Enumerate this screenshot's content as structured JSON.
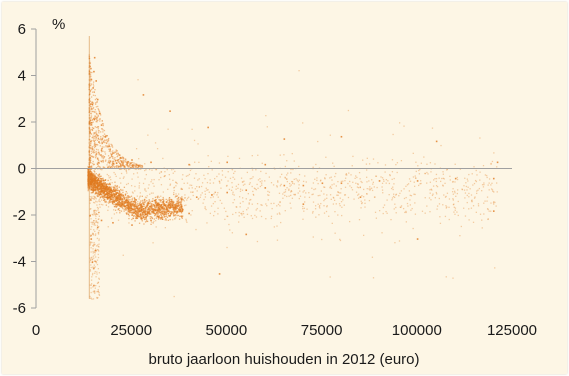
{
  "chart_data": {
    "type": "scatter",
    "title": "",
    "xlabel": "bruto jaarloon huishouden in 2012 (euro)",
    "ylabel": "%",
    "xlim": [
      0,
      125000
    ],
    "ylim": [
      -6,
      6
    ],
    "x_ticks": [
      0,
      25000,
      50000,
      75000,
      100000,
      125000
    ],
    "x_tick_labels": [
      "0",
      "25000",
      "50000",
      "75000",
      "100000",
      "125000"
    ],
    "y_ticks": [
      -6,
      -4,
      -2,
      0,
      2,
      4,
      6
    ],
    "y_tick_labels": [
      "-6",
      "-4",
      "-2",
      "0",
      "2",
      "4",
      "6"
    ],
    "grid": false,
    "legend": "none",
    "point_color": "#e07a1f",
    "series": [
      {
        "points_note": "dense household scatter",
        "points": [
          [
            14000,
            -0.4
          ],
          [
            14500,
            -0.2
          ],
          [
            15000,
            -0.6
          ],
          [
            15500,
            -0.5
          ],
          [
            16000,
            -0.8
          ],
          [
            16500,
            -0.7
          ],
          [
            17000,
            -0.9
          ],
          [
            17500,
            -1.0
          ],
          [
            18000,
            -1.1
          ],
          [
            18500,
            -1.2
          ],
          [
            19000,
            -1.2
          ],
          [
            19500,
            -1.3
          ],
          [
            20000,
            -1.4
          ],
          [
            21000,
            -1.5
          ],
          [
            22000,
            -1.6
          ],
          [
            23000,
            -1.6
          ],
          [
            24000,
            -1.7
          ],
          [
            25000,
            -1.7
          ],
          [
            26000,
            -1.8
          ],
          [
            27000,
            -1.8
          ],
          [
            28000,
            -1.7
          ],
          [
            30000,
            -1.6
          ],
          [
            32000,
            -1.5
          ],
          [
            35000,
            -1.4
          ],
          [
            38000,
            -1.3
          ],
          [
            42000,
            -1.2
          ],
          [
            46000,
            -1.1
          ],
          [
            50000,
            -1.0
          ],
          [
            55000,
            -0.9
          ],
          [
            60000,
            -0.8
          ],
          [
            65000,
            -0.7
          ],
          [
            70000,
            -0.7
          ],
          [
            75000,
            -0.6
          ],
          [
            80000,
            -0.6
          ],
          [
            90000,
            -0.5
          ],
          [
            100000,
            -0.5
          ],
          [
            110000,
            -0.4
          ],
          [
            120000,
            -0.4
          ],
          [
            14000,
            0.5
          ],
          [
            14200,
            1.2
          ],
          [
            14400,
            2.0
          ],
          [
            14600,
            2.8
          ],
          [
            14800,
            3.5
          ],
          [
            15000,
            4.2
          ],
          [
            15200,
            4.8
          ],
          [
            15600,
            3.8
          ],
          [
            16000,
            3.0
          ],
          [
            16500,
            2.4
          ],
          [
            17000,
            1.9
          ],
          [
            18000,
            1.4
          ],
          [
            19000,
            1.0
          ],
          [
            20000,
            0.7
          ],
          [
            22000,
            0.5
          ],
          [
            25000,
            0.4
          ],
          [
            30000,
            0.3
          ],
          [
            40000,
            0.2
          ],
          [
            50000,
            0.3
          ],
          [
            60000,
            0.2
          ],
          [
            14000,
            -2.0
          ],
          [
            14300,
            -3.0
          ],
          [
            14600,
            -4.0
          ],
          [
            15000,
            -5.0
          ],
          [
            15500,
            -3.5
          ],
          [
            16000,
            -2.5
          ],
          [
            17000,
            -2.2
          ],
          [
            20000,
            -2.3
          ],
          [
            25000,
            -2.4
          ],
          [
            30000,
            -2.2
          ],
          [
            35000,
            -2.0
          ],
          [
            40000,
            -1.9
          ],
          [
            48000,
            -4.5
          ],
          [
            55000,
            -2.8
          ],
          [
            70000,
            -1.5
          ],
          [
            85000,
            -1.2
          ],
          [
            100000,
            -3.0
          ],
          [
            120000,
            -1.8
          ],
          [
            121000,
            0.3
          ],
          [
            105000,
            1.2
          ],
          [
            80000,
            1.4
          ],
          [
            65000,
            1.3
          ],
          [
            45000,
            1.8
          ],
          [
            35000,
            2.5
          ],
          [
            28000,
            3.2
          ]
        ]
      }
    ]
  }
}
